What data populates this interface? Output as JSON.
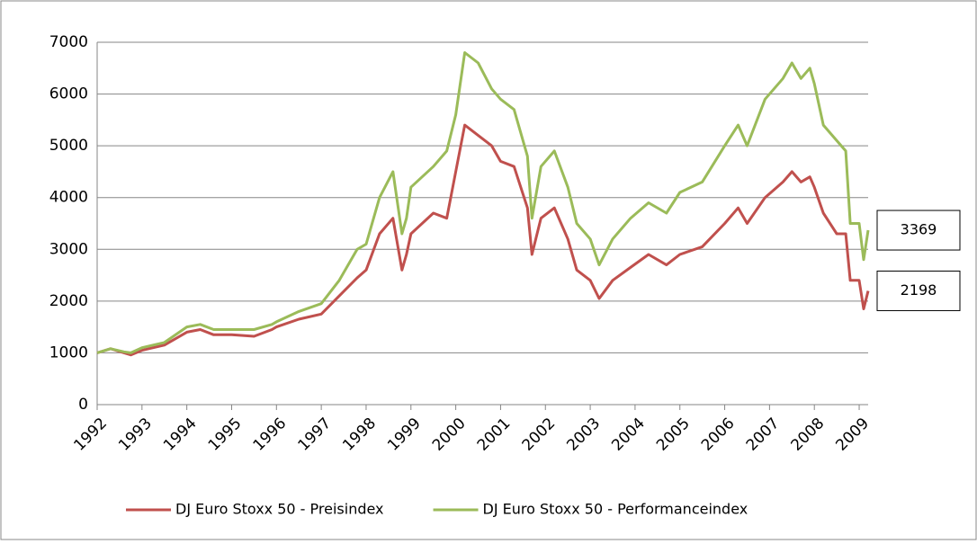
{
  "chart_data": {
    "type": "line",
    "x": [
      1992.0,
      1992.3,
      1992.6,
      1992.75,
      1993.0,
      1993.5,
      1994.0,
      1994.3,
      1994.6,
      1995.0,
      1995.5,
      1995.9,
      1996.0,
      1996.5,
      1997.0,
      1997.4,
      1997.8,
      1998.0,
      1998.3,
      1998.6,
      1998.8,
      1998.9,
      1999.0,
      1999.5,
      1999.8,
      2000.0,
      2000.2,
      2000.5,
      2000.8,
      2001.0,
      2001.3,
      2001.6,
      2001.7,
      2001.9,
      2002.2,
      2002.5,
      2002.7,
      2003.0,
      2003.2,
      2003.5,
      2003.9,
      2004.3,
      2004.7,
      2005.0,
      2005.5,
      2006.0,
      2006.3,
      2006.5,
      2006.9,
      2007.3,
      2007.5,
      2007.7,
      2007.9,
      2008.0,
      2008.2,
      2008.5,
      2008.7,
      2008.8,
      2009.0,
      2009.1,
      2009.2
    ],
    "series": [
      {
        "name": "DJ Euro Stoxx 50 - Preisindex",
        "color": "#c0504d",
        "values": [
          1000,
          1080,
          1000,
          960,
          1050,
          1150,
          1400,
          1450,
          1350,
          1350,
          1320,
          1450,
          1500,
          1650,
          1750,
          2100,
          2450,
          2600,
          3300,
          3600,
          2600,
          2900,
          3300,
          3700,
          3600,
          4500,
          5400,
          5200,
          5000,
          4700,
          4600,
          3800,
          2900,
          3600,
          3800,
          3200,
          2600,
          2400,
          2050,
          2400,
          2650,
          2900,
          2700,
          2900,
          3050,
          3500,
          3800,
          3500,
          4000,
          4300,
          4500,
          4300,
          4400,
          4200,
          3700,
          3300,
          3300,
          2400,
          2400,
          1850,
          2198
        ]
      },
      {
        "name": "DJ Euro Stoxx 50 - Performanceindex",
        "color": "#9bbb59",
        "values": [
          1000,
          1080,
          1020,
          1000,
          1100,
          1200,
          1500,
          1550,
          1450,
          1450,
          1450,
          1550,
          1600,
          1800,
          1950,
          2400,
          3000,
          3100,
          4000,
          4500,
          3300,
          3600,
          4200,
          4600,
          4900,
          5600,
          6800,
          6600,
          6100,
          5900,
          5700,
          4800,
          3600,
          4600,
          4900,
          4200,
          3500,
          3200,
          2700,
          3200,
          3600,
          3900,
          3700,
          4100,
          4300,
          5000,
          5400,
          5000,
          5900,
          6300,
          6600,
          6300,
          6500,
          6200,
          5400,
          5100,
          4900,
          3500,
          3500,
          2800,
          3369
        ]
      }
    ],
    "annotations": [
      3369,
      2198
    ],
    "xlim": [
      1992,
      2009.2
    ],
    "xticks": [
      1992,
      1993,
      1994,
      1995,
      1996,
      1997,
      1998,
      1999,
      2000,
      2001,
      2002,
      2003,
      2004,
      2005,
      2006,
      2007,
      2008,
      2009
    ],
    "ylim": [
      0,
      7000
    ],
    "yticks": [
      0,
      1000,
      2000,
      3000,
      4000,
      5000,
      6000,
      7000
    ],
    "grid": true,
    "legend": "bottom"
  }
}
